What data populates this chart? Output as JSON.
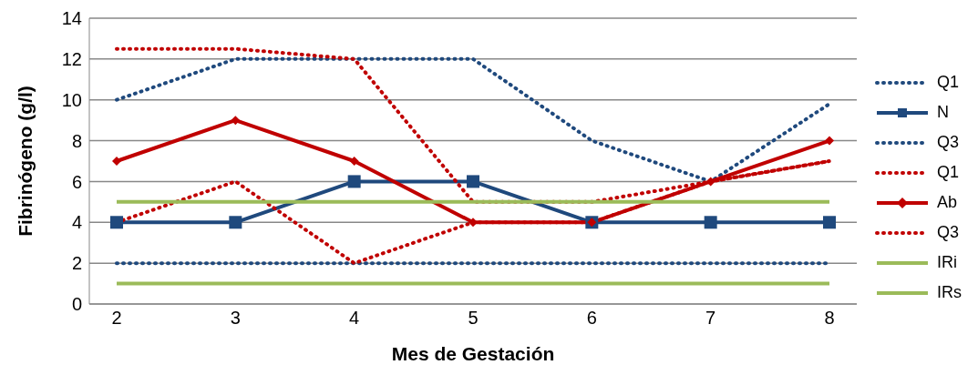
{
  "chart_data": {
    "type": "line",
    "xlabel": "Mes de Gestación",
    "ylabel": "Fibrinógeno (g/l)",
    "categories": [
      "2",
      "3",
      "4",
      "5",
      "6",
      "7",
      "8"
    ],
    "ylim": [
      0,
      14
    ],
    "yticks": [
      0,
      2,
      4,
      6,
      8,
      10,
      12,
      14
    ],
    "grid": "y",
    "legend": "right",
    "series": [
      {
        "name": "Q1",
        "color": "#1f497d",
        "line_style": "dotted",
        "marker": "none",
        "values": [
          2,
          2,
          2,
          2,
          2,
          2,
          2
        ]
      },
      {
        "name": "N",
        "color": "#1f497d",
        "line_style": "solid",
        "marker": "square",
        "values": [
          4,
          4,
          6,
          6,
          4,
          4,
          4
        ]
      },
      {
        "name": "Q3",
        "color": "#1f497d",
        "line_style": "dotted",
        "marker": "none",
        "values": [
          10,
          12,
          12,
          12,
          8,
          6,
          9.8
        ]
      },
      {
        "name": "Q1",
        "color": "#c00000",
        "line_style": "dotted",
        "marker": "none",
        "values": [
          4,
          6,
          2,
          4,
          4,
          6,
          7
        ]
      },
      {
        "name": "Ab",
        "color": "#c00000",
        "line_style": "solid",
        "marker": "diamond",
        "values": [
          7,
          9,
          7,
          4,
          4,
          6,
          8
        ]
      },
      {
        "name": "Q3",
        "color": "#c00000",
        "line_style": "dotted",
        "marker": "none",
        "values": [
          12.5,
          12.5,
          12,
          5,
          5,
          6,
          7
        ]
      },
      {
        "name": "IRi",
        "color": "#9bbb59",
        "line_style": "solid",
        "marker": "none",
        "values": [
          1,
          1,
          1,
          1,
          1,
          1,
          1
        ]
      },
      {
        "name": "IRs",
        "color": "#9bbb59",
        "line_style": "solid",
        "marker": "none",
        "values": [
          5,
          5,
          5,
          5,
          5,
          5,
          5
        ]
      }
    ]
  }
}
